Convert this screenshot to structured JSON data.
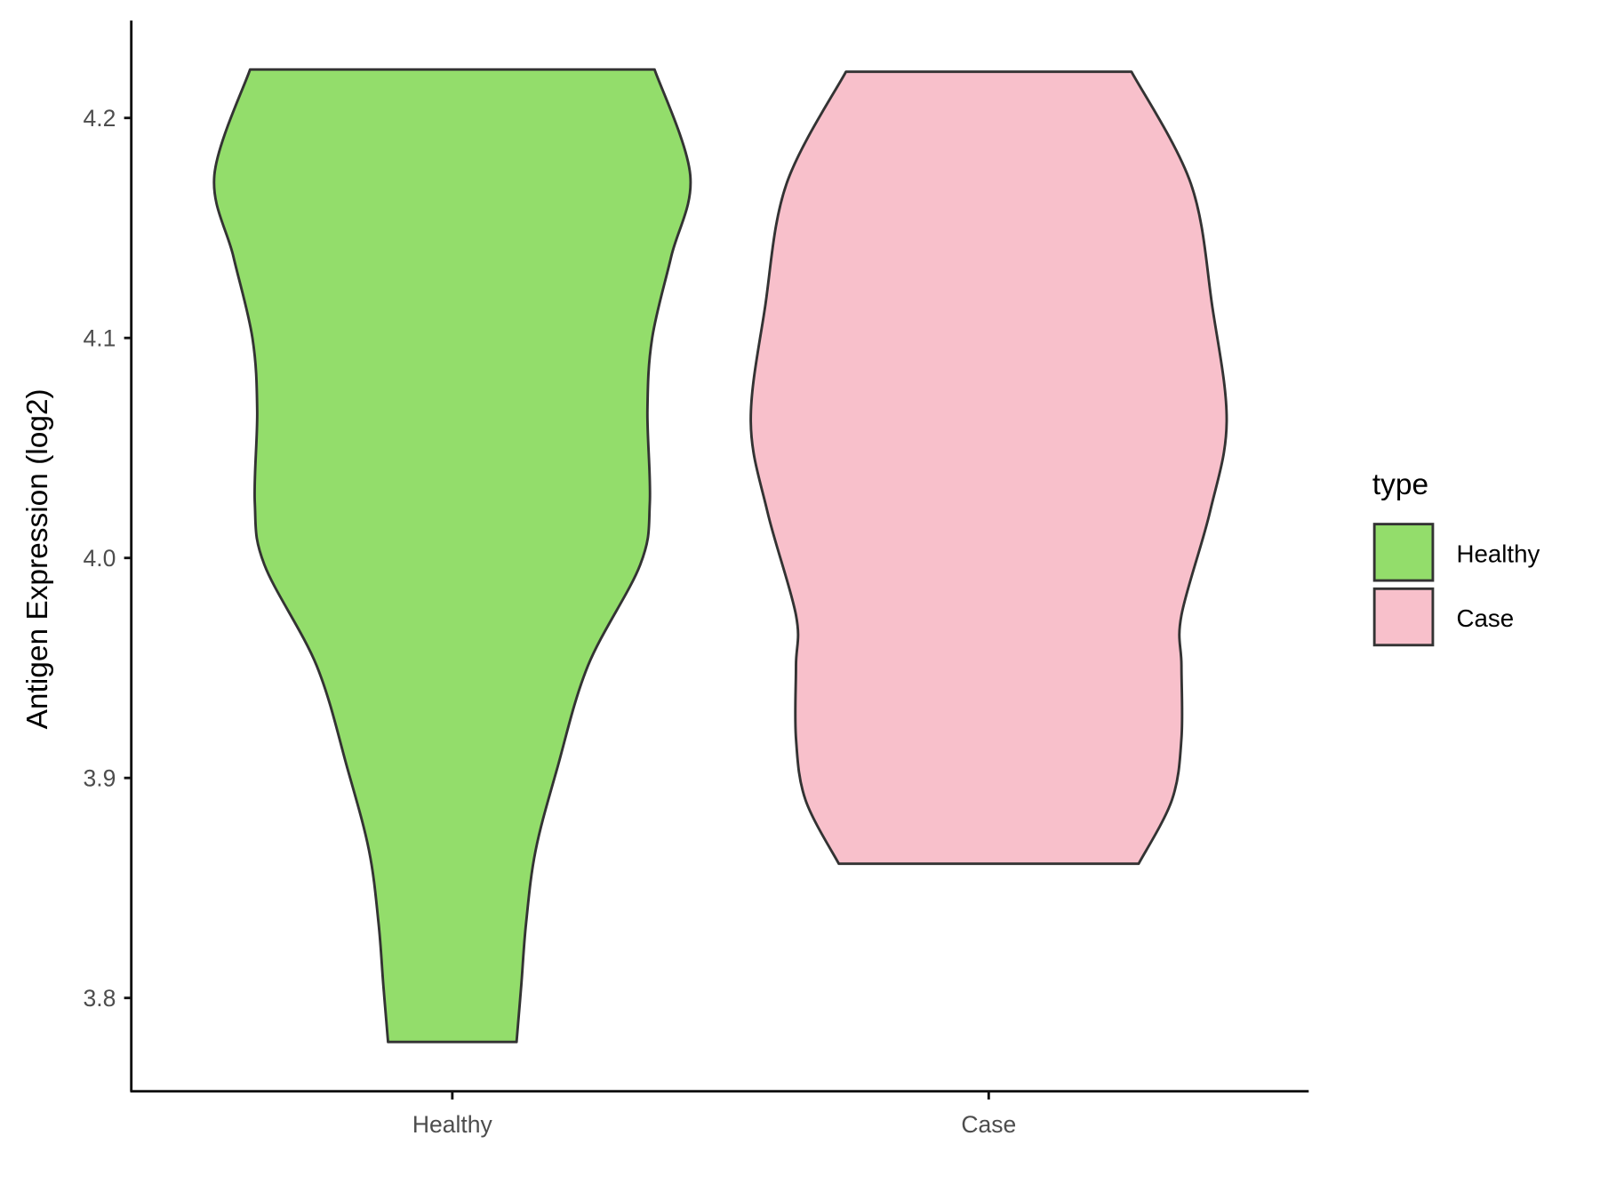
{
  "chart_data": {
    "type": "violin",
    "title": "",
    "xlabel": "",
    "ylabel": "Antigen Expression (log2)",
    "ylim": [
      3.758,
      4.245
    ],
    "yticks": [
      3.8,
      3.9,
      4.0,
      4.1,
      4.2
    ],
    "ytick_labels": [
      "3.8",
      "3.9",
      "4.0",
      "4.1",
      "4.2"
    ],
    "categories": [
      "Healthy",
      "Case"
    ],
    "grid": false,
    "legend": {
      "title": "type",
      "placement": "right",
      "entries": [
        "Healthy",
        "Case"
      ]
    },
    "series": [
      {
        "name": "Healthy",
        "color": "#93DD6B",
        "min": 3.78,
        "max": 4.222,
        "density_profile": [
          [
            4.222,
            0.85
          ],
          [
            4.174,
            1.0
          ],
          [
            4.137,
            0.92
          ],
          [
            4.1,
            0.84
          ],
          [
            4.067,
            0.82
          ],
          [
            4.025,
            0.83
          ],
          [
            3.997,
            0.79
          ],
          [
            3.951,
            0.57
          ],
          [
            3.904,
            0.44
          ],
          [
            3.867,
            0.35
          ],
          [
            3.834,
            0.31
          ],
          [
            3.806,
            0.29
          ],
          [
            3.78,
            0.27
          ]
        ]
      },
      {
        "name": "Case",
        "color": "#F8C0CB",
        "min": 3.861,
        "max": 4.221,
        "density_profile": [
          [
            4.221,
            0.6
          ],
          [
            4.17,
            0.85
          ],
          [
            4.114,
            0.94
          ],
          [
            4.062,
            1.0
          ],
          [
            4.021,
            0.93
          ],
          [
            3.974,
            0.81
          ],
          [
            3.951,
            0.81
          ],
          [
            3.918,
            0.81
          ],
          [
            3.89,
            0.77
          ],
          [
            3.861,
            0.63
          ]
        ]
      }
    ],
    "outline_color": "#333333"
  }
}
